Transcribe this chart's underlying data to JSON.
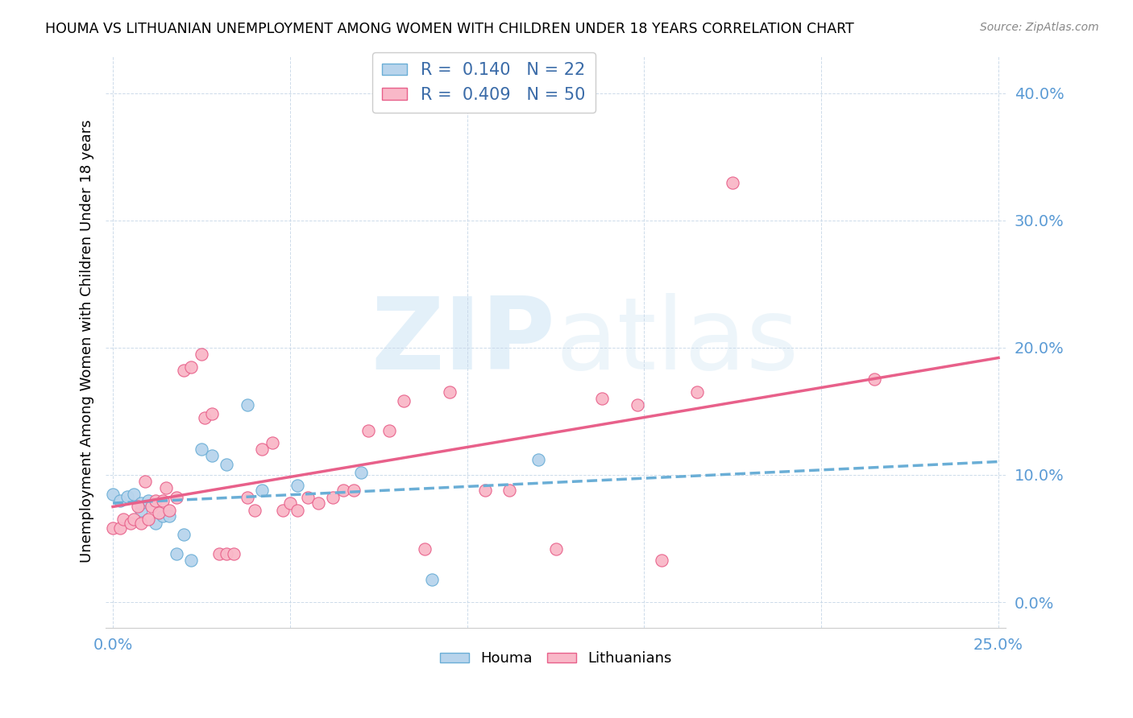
{
  "title": "HOUMA VS LITHUANIAN UNEMPLOYMENT AMONG WOMEN WITH CHILDREN UNDER 18 YEARS CORRELATION CHART",
  "source": "Source: ZipAtlas.com",
  "ylabel": "Unemployment Among Women with Children Under 18 years",
  "xlabel_houma": "Houma",
  "xlabel_lithuanian": "Lithuanians",
  "watermark_zip": "ZIP",
  "watermark_atlas": "atlas",
  "xlim": [
    -0.002,
    0.252
  ],
  "ylim": [
    -0.02,
    0.43
  ],
  "xticks_labeled": [
    0.0,
    0.25
  ],
  "xticks_grid": [
    0.0,
    0.05,
    0.1,
    0.15,
    0.2,
    0.25
  ],
  "yticks": [
    0.0,
    0.1,
    0.2,
    0.3,
    0.4
  ],
  "houma_R": 0.14,
  "houma_N": 22,
  "lithuanian_R": 0.409,
  "lithuanian_N": 50,
  "houma_scatter_color": "#b8d4ec",
  "houma_scatter_edge": "#6aaed6",
  "houma_line_color": "#6aaed6",
  "lithuanian_scatter_color": "#f9b8c8",
  "lithuanian_scatter_edge": "#e8608a",
  "lithuanian_line_color": "#e8608a",
  "tick_color": "#5b9bd5",
  "legend_text_color": "#3a6ba8",
  "houma_x": [
    0.0,
    0.002,
    0.004,
    0.006,
    0.008,
    0.008,
    0.01,
    0.012,
    0.014,
    0.016,
    0.018,
    0.02,
    0.022,
    0.025,
    0.028,
    0.032,
    0.038,
    0.042,
    0.052,
    0.07,
    0.09,
    0.12
  ],
  "houma_y": [
    0.085,
    0.08,
    0.083,
    0.085,
    0.072,
    0.078,
    0.08,
    0.062,
    0.068,
    0.068,
    0.038,
    0.053,
    0.033,
    0.12,
    0.115,
    0.108,
    0.155,
    0.088,
    0.092,
    0.102,
    0.018,
    0.112
  ],
  "lithuanian_x": [
    0.0,
    0.002,
    0.003,
    0.005,
    0.006,
    0.007,
    0.008,
    0.009,
    0.01,
    0.011,
    0.012,
    0.013,
    0.014,
    0.015,
    0.016,
    0.018,
    0.02,
    0.022,
    0.025,
    0.026,
    0.028,
    0.03,
    0.032,
    0.034,
    0.038,
    0.04,
    0.042,
    0.045,
    0.048,
    0.05,
    0.052,
    0.055,
    0.058,
    0.062,
    0.065,
    0.068,
    0.072,
    0.078,
    0.082,
    0.088,
    0.095,
    0.105,
    0.112,
    0.125,
    0.138,
    0.148,
    0.155,
    0.165,
    0.175,
    0.215
  ],
  "lithuanian_y": [
    0.058,
    0.058,
    0.065,
    0.062,
    0.065,
    0.075,
    0.062,
    0.095,
    0.065,
    0.075,
    0.08,
    0.07,
    0.08,
    0.09,
    0.072,
    0.082,
    0.182,
    0.185,
    0.195,
    0.145,
    0.148,
    0.038,
    0.038,
    0.038,
    0.082,
    0.072,
    0.12,
    0.125,
    0.072,
    0.078,
    0.072,
    0.082,
    0.078,
    0.082,
    0.088,
    0.088,
    0.135,
    0.135,
    0.158,
    0.042,
    0.165,
    0.088,
    0.088,
    0.042,
    0.16,
    0.155,
    0.033,
    0.165,
    0.33,
    0.175
  ]
}
